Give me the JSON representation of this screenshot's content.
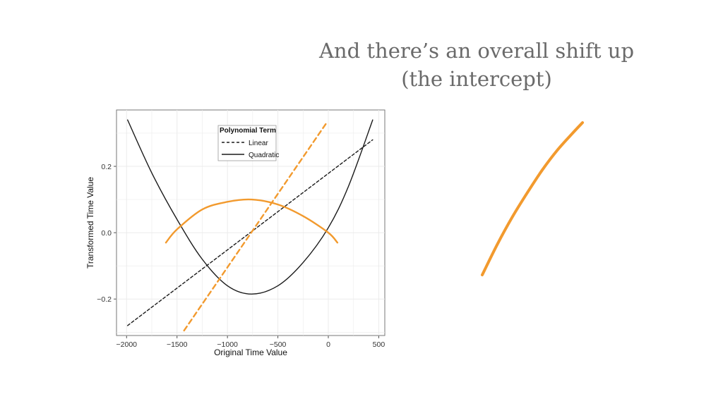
{
  "slide": {
    "title_line1": "And there’s an overall shift up",
    "title_line2": "(the intercept)"
  },
  "colors": {
    "accent_orange": "#f29a2e",
    "black_line": "#1a1a1a",
    "grid": "#ebebeb"
  },
  "chart_data": [
    {
      "type": "line",
      "xlabel": "Original Time Value",
      "ylabel": "Transformed Time Value",
      "xlim": [
        -2100,
        560
      ],
      "ylim": [
        -0.31,
        0.37
      ],
      "xticks": [
        -2000,
        -1500,
        -1000,
        -500,
        0,
        500
      ],
      "xtick_labels": [
        "−2000",
        "−1500",
        "−1000",
        "−500",
        "0",
        "500"
      ],
      "yticks": [
        -0.2,
        0.0,
        0.2
      ],
      "ytick_labels": [
        "−0.2",
        "0.0",
        "0.2"
      ],
      "grid": true,
      "legend": {
        "title": "Polynomial Term",
        "placement": "top-center",
        "entries": [
          "Linear",
          "Quadratic"
        ]
      },
      "series": [
        {
          "name": "Linear",
          "style": "dashed",
          "color": "#1a1a1a",
          "x": [
            -1990,
            440
          ],
          "y": [
            -0.28,
            0.28
          ]
        },
        {
          "name": "Quadratic",
          "style": "solid",
          "color": "#1a1a1a",
          "x": [
            -1990,
            -1750,
            -1500,
            -1250,
            -1000,
            -760,
            -500,
            -250,
            0,
            200,
            440
          ],
          "y": [
            0.34,
            0.18,
            0.04,
            -0.08,
            -0.16,
            -0.185,
            -0.16,
            -0.09,
            0.015,
            0.14,
            0.34
          ]
        },
        {
          "style": "dashed",
          "color": "#f29a2e",
          "x": [
            -1430,
            -20
          ],
          "y": [
            -0.295,
            0.33
          ]
        },
        {
          "style": "solid",
          "color": "#f29a2e",
          "x": [
            -1610,
            -1500,
            -1250,
            -1000,
            -760,
            -500,
            -250,
            0,
            90
          ],
          "y": [
            -0.03,
            0.01,
            0.07,
            0.093,
            0.1,
            0.085,
            0.05,
            0.0,
            -0.03
          ]
        }
      ]
    },
    {
      "type": "line",
      "series": [
        {
          "color": "#f29a2e",
          "x": [
            0,
            0.15,
            0.3,
            0.45,
            0.6,
            0.75,
            0.9,
            1.0
          ],
          "y": [
            0,
            0.2,
            0.38,
            0.54,
            0.69,
            0.82,
            0.93,
            1.0
          ]
        }
      ]
    }
  ]
}
